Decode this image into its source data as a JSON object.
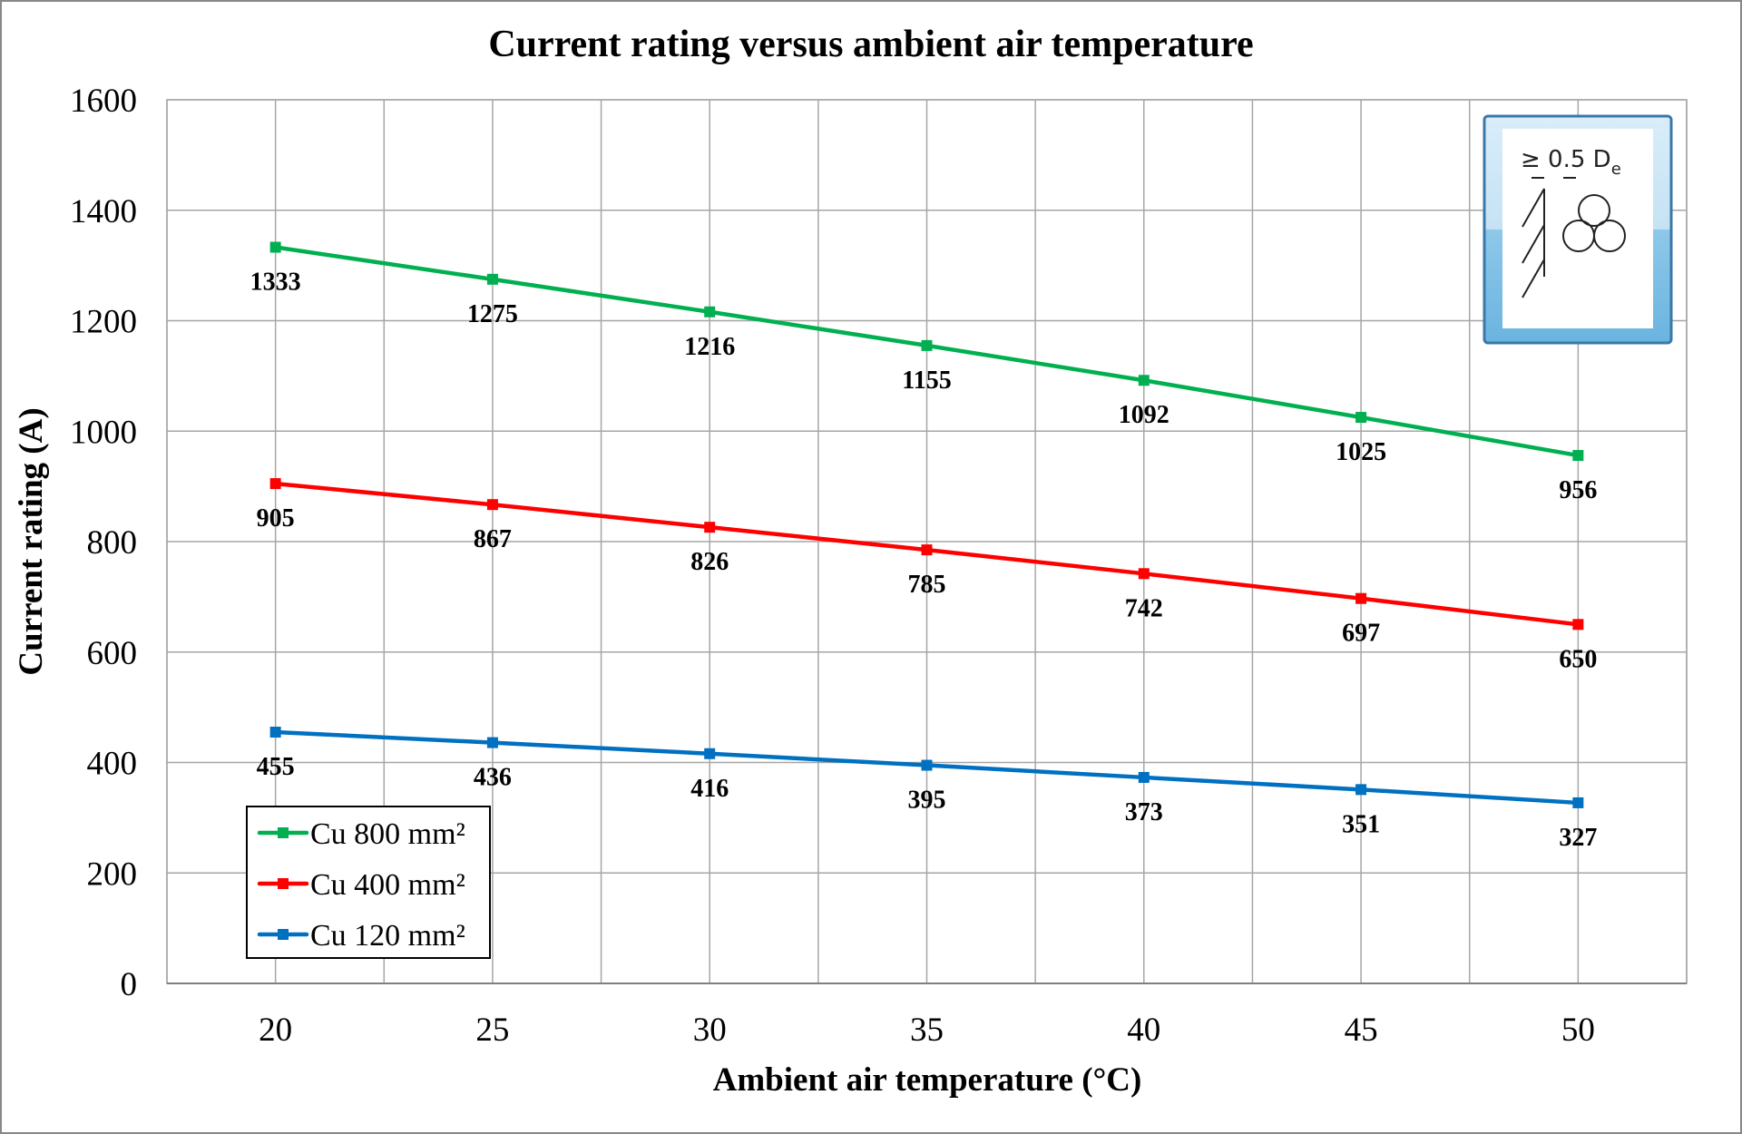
{
  "chart_data": {
    "type": "line",
    "title": "Current rating versus ambient air temperature",
    "xlabel": "Ambient air temperature (°C)",
    "ylabel": "Current rating (A)",
    "categories": [
      20,
      25,
      30,
      35,
      40,
      45,
      50
    ],
    "ylim": [
      0,
      1600
    ],
    "yticks": [
      0,
      200,
      400,
      600,
      800,
      1000,
      1200,
      1400,
      1600
    ],
    "grid": true,
    "legend_position": "bottom-left",
    "series": [
      {
        "name": "Cu 800 mm²",
        "color": "#00b050",
        "values": [
          1333,
          1275,
          1216,
          1155,
          1092,
          1025,
          956
        ]
      },
      {
        "name": "Cu 400 mm²",
        "color": "#ff0000",
        "values": [
          905,
          867,
          826,
          785,
          742,
          697,
          650
        ]
      },
      {
        "name": "Cu 120 mm²",
        "color": "#0070c0",
        "values": [
          455,
          436,
          416,
          395,
          373,
          351,
          327
        ]
      }
    ],
    "inset": {
      "label": "≥ 0.5 D",
      "subscript": "e",
      "icon": "cable-trefoil-clearance-icon"
    }
  }
}
